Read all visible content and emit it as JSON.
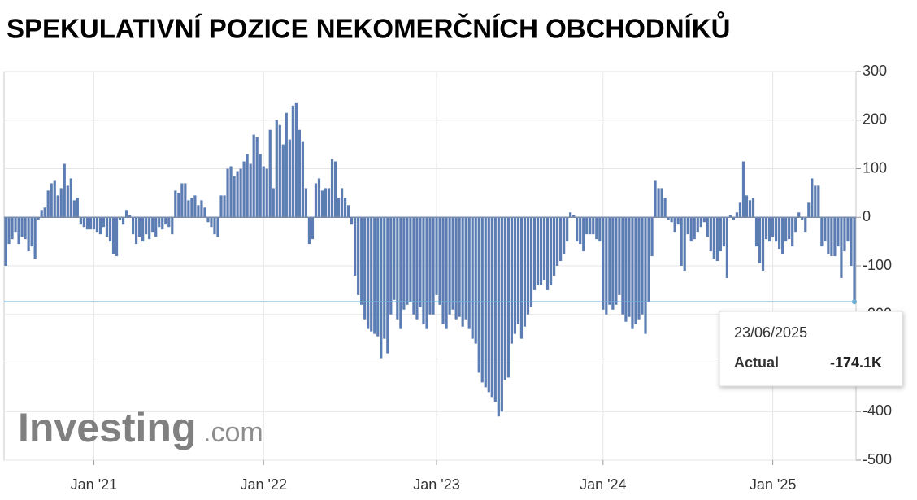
{
  "chart_data": {
    "type": "bar",
    "title": "SPEKULATIVNÍ POZICE NEKOMERČNÍCH OBCHODNÍKŮ",
    "color": "#5b7db4",
    "ylim": [
      -500,
      300
    ],
    "yticks": [
      300,
      200,
      100,
      0,
      -100,
      -200,
      -300,
      -400,
      -500
    ],
    "xticks": [
      {
        "value": 27,
        "label": "Jan '21"
      },
      {
        "value": 79,
        "label": "Jan '22"
      },
      {
        "value": 132,
        "label": "Jan '23"
      },
      {
        "value": 183,
        "label": "Jan '24"
      },
      {
        "value": 235,
        "label": "Jan '25"
      }
    ],
    "grid": true,
    "watermark": [
      "Investing",
      ".com"
    ],
    "tooltip": {
      "date": "23/06/2025",
      "name": "Actual",
      "value_label": "-174.1K"
    },
    "values": [
      -100,
      -55,
      -45,
      -30,
      -55,
      -40,
      -45,
      -70,
      -60,
      -85,
      -5,
      15,
      20,
      55,
      70,
      75,
      45,
      60,
      110,
      65,
      80,
      35,
      40,
      -15,
      -20,
      -25,
      -25,
      -25,
      -30,
      -35,
      -20,
      -40,
      -50,
      -75,
      -80,
      -5,
      -15,
      15,
      5,
      -35,
      -55,
      -40,
      -50,
      -35,
      -45,
      -30,
      -40,
      -20,
      -25,
      -15,
      -20,
      -35,
      55,
      50,
      70,
      70,
      35,
      40,
      45,
      25,
      35,
      20,
      -10,
      -20,
      -35,
      -40,
      45,
      45,
      100,
      105,
      85,
      95,
      100,
      115,
      130,
      110,
      170,
      165,
      130,
      105,
      100,
      180,
      60,
      200,
      190,
      150,
      215,
      160,
      230,
      235,
      180,
      155,
      60,
      -55,
      -45,
      70,
      80,
      55,
      60,
      60,
      120,
      115,
      40,
      60,
      40,
      25,
      -15,
      -120,
      -160,
      -180,
      -210,
      -230,
      -235,
      -240,
      -245,
      -290,
      -250,
      -280,
      -200,
      -170,
      -210,
      -230,
      -190,
      -180,
      -175,
      -200,
      -210,
      -185,
      -220,
      -230,
      -200,
      -200,
      -160,
      -180,
      -220,
      -230,
      -200,
      -190,
      -210,
      -205,
      -225,
      -210,
      -230,
      -250,
      -260,
      -320,
      -340,
      -350,
      -360,
      -370,
      -380,
      -410,
      -400,
      -335,
      -330,
      -260,
      -240,
      -220,
      -250,
      -225,
      -200,
      -185,
      -150,
      -140,
      -140,
      -130,
      -150,
      -140,
      -120,
      -100,
      -90,
      -75,
      -50,
      10,
      5,
      -50,
      -55,
      -70,
      -35,
      -35,
      -35,
      -45,
      -50,
      -190,
      -200,
      -180,
      -190,
      -180,
      -160,
      -200,
      -215,
      -205,
      -230,
      -220,
      -210,
      -200,
      -240,
      -175,
      -80,
      75,
      60,
      60,
      40,
      -5,
      -10,
      -30,
      -15,
      -100,
      -110,
      -35,
      -50,
      -45,
      -30,
      -20,
      -10,
      -40,
      -70,
      -85,
      -90,
      -70,
      -60,
      -125,
      5,
      -5,
      10,
      30,
      115,
      45,
      35,
      40,
      -60,
      -95,
      -110,
      -45,
      -50,
      -40,
      -50,
      -65,
      -75,
      -50,
      -45,
      -60,
      -30,
      10,
      -5,
      -30,
      30,
      80,
      65,
      65,
      -60,
      -50,
      -75,
      -80,
      -80,
      -60,
      -125,
      -70,
      -50,
      -100,
      -174.1
    ]
  }
}
